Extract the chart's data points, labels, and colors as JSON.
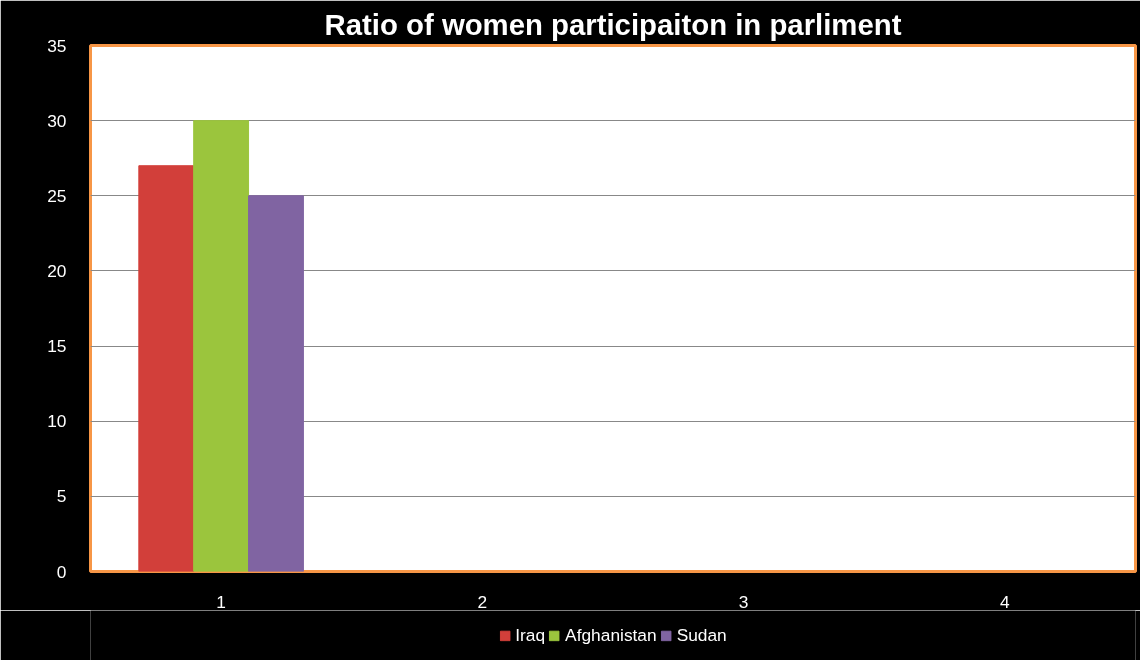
{
  "chart_data": {
    "type": "bar",
    "title": "Ratio of women participaiton in parliment",
    "categories": [
      "1",
      "2",
      "3",
      "4"
    ],
    "series": [
      {
        "name": "Iraq",
        "color": "#d23f3a",
        "values": [
          27,
          null,
          null,
          null
        ]
      },
      {
        "name": "Afghanistan",
        "color": "#9bc53d",
        "values": [
          30,
          null,
          null,
          null
        ]
      },
      {
        "name": "Sudan",
        "color": "#8064a2",
        "values": [
          25,
          null,
          null,
          null
        ]
      }
    ],
    "ylim": [
      0,
      35
    ],
    "yticks": [
      0,
      5,
      10,
      15,
      20,
      25,
      30,
      35
    ],
    "grid": "y",
    "legend": "bottom"
  }
}
